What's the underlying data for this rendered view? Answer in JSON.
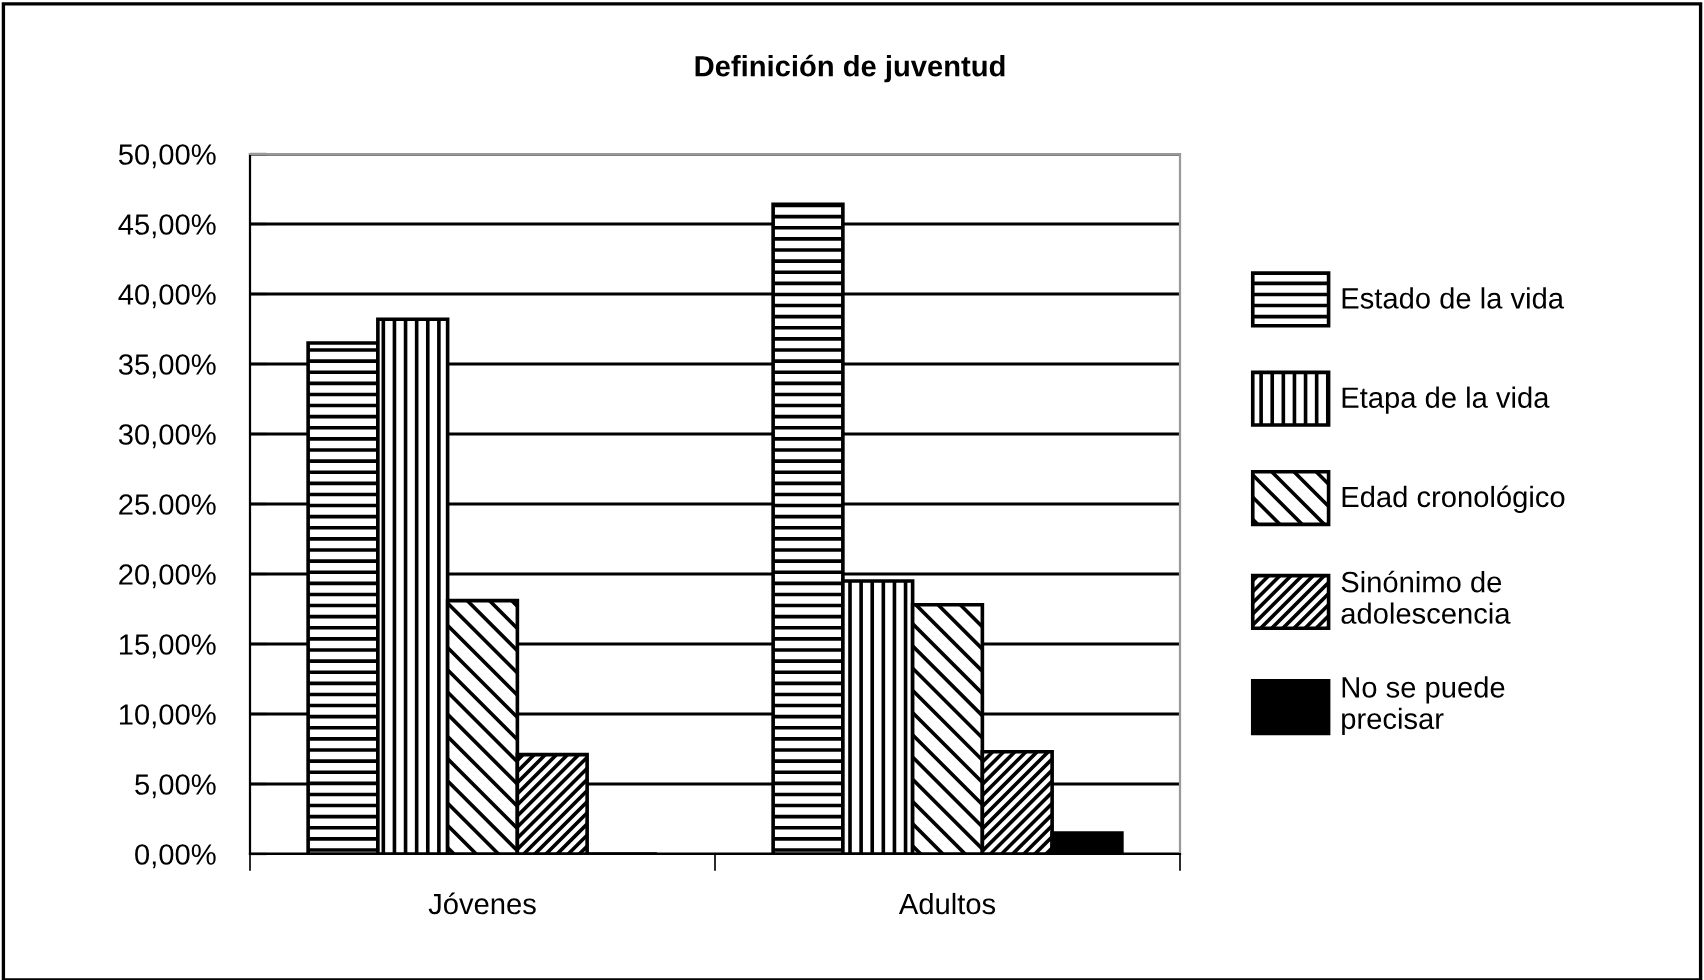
{
  "chart_data": {
    "type": "bar",
    "title": "Definición de juventud",
    "categories": [
      "Jóvenes",
      "Adultos"
    ],
    "series": [
      {
        "name": "Estado de la vida",
        "color": "#000000",
        "values": [
          36.5,
          46.4
        ]
      },
      {
        "name": "Etapa de la vida",
        "color": "#000000",
        "values": [
          38.2,
          19.5
        ]
      },
      {
        "name": "Edad cronológico",
        "color": "#000000",
        "values": [
          18.1,
          17.8
        ]
      },
      {
        "name": "Sinónimo de\nadolescencia",
        "color": "#000000",
        "values": [
          7.1,
          7.3
        ]
      },
      {
        "name": "No se puede\nprecisar",
        "color": "#000000",
        "values": [
          0,
          1.5
        ]
      }
    ],
    "ylim": [
      0,
      50
    ],
    "yticks": [
      {
        "value": 0,
        "label": "0,00%"
      },
      {
        "value": 5,
        "label": "5,00%"
      },
      {
        "value": 10,
        "label": "10,00%"
      },
      {
        "value": 15,
        "label": "15,00%"
      },
      {
        "value": 20,
        "label": "20,00%"
      },
      {
        "value": 25,
        "label": "25.00%"
      },
      {
        "value": 30,
        "label": "30,00%"
      },
      {
        "value": 35,
        "label": "35,00%"
      },
      {
        "value": 40,
        "label": "40,00%"
      },
      {
        "value": 45,
        "label": "45,00%"
      },
      {
        "value": 50,
        "label": "50,00%"
      }
    ],
    "grid": "y",
    "legend": "right"
  }
}
